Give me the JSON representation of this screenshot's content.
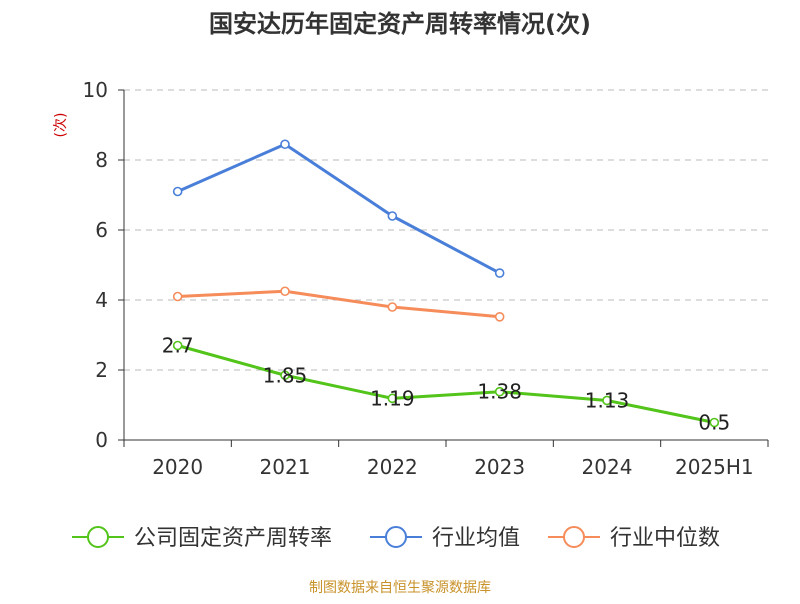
{
  "chart_data": {
    "type": "line",
    "title": "国安达历年固定资产周转率情况(次)",
    "ylabel": "(次)",
    "xlabel": "",
    "categories": [
      "2020",
      "2021",
      "2022",
      "2023",
      "2024",
      "2025H1"
    ],
    "ylim": [
      0,
      10
    ],
    "yticks": [
      0,
      2,
      4,
      6,
      8,
      10
    ],
    "grid": true,
    "legend_position": "bottom",
    "series": [
      {
        "name": "公司固定资产周转率",
        "values": [
          2.7,
          1.85,
          1.19,
          1.38,
          1.13,
          0.5
        ],
        "data_labels": [
          "2.7",
          "1.85",
          "1.19",
          "1.38",
          "1.13",
          "0.5"
        ],
        "color": "#52c41a"
      },
      {
        "name": "行业均值",
        "values": [
          7.1,
          8.45,
          6.4,
          4.77,
          null,
          null
        ],
        "color": "#4a7fd9"
      },
      {
        "name": "行业中位数",
        "values": [
          4.1,
          4.25,
          3.8,
          3.52,
          null,
          null
        ],
        "color": "#f58c5a"
      }
    ],
    "source_note": "制图数据来自恒生聚源数据库",
    "colors": {
      "axis": "#333333",
      "grid": "#bbbbbb",
      "ylabel": "#cc0000",
      "source": "#c8922a",
      "title": "#333333"
    }
  }
}
